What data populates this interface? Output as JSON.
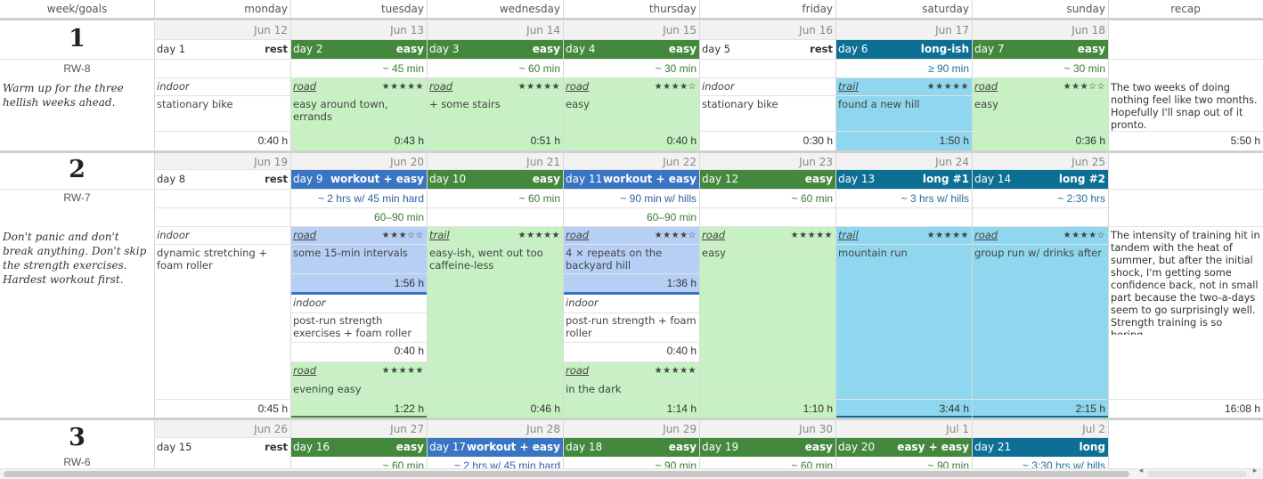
{
  "columns": [
    "week/goals",
    "monday",
    "tuesday",
    "wednesday",
    "thursday",
    "friday",
    "saturday",
    "sunday",
    "recap"
  ],
  "weeks": [
    {
      "number": "1",
      "rw": "RW-8",
      "goal": "Warm up for the three hellish weeks ahead.",
      "recap": "The two weeks of doing nothing feel like two months. Hopefully I'll snap out of it pronto.",
      "recap_total": "5:50 h",
      "days": [
        {
          "date": "Jun 12",
          "label": "day 1",
          "kind": "rest",
          "duration": "",
          "type": "indoor",
          "stars": "",
          "desc": "stationary bike",
          "total": "0:40 h"
        },
        {
          "date": "Jun 13",
          "label": "day 2",
          "kind": "easy",
          "duration": "~ 45 min",
          "type": "road",
          "stars": "★★★★★",
          "desc": "easy around town, errands",
          "total": "0:43 h"
        },
        {
          "date": "Jun 14",
          "label": "day 3",
          "kind": "easy",
          "duration": "~ 60 min",
          "type": "road",
          "stars": "★★★★★",
          "desc": "+ some stairs",
          "total": "0:51 h"
        },
        {
          "date": "Jun 15",
          "label": "day 4",
          "kind": "easy",
          "duration": "~ 30 min",
          "type": "road",
          "stars": "★★★★☆",
          "desc": "easy",
          "total": "0:40 h"
        },
        {
          "date": "Jun 16",
          "label": "day 5",
          "kind": "rest",
          "duration": "",
          "type": "indoor",
          "stars": "",
          "desc": "stationary bike",
          "total": "0:30 h"
        },
        {
          "date": "Jun 17",
          "label": "day 6",
          "kind": "long-ish",
          "duration": "≥ 90 min",
          "type": "trail",
          "stars": "★★★★★",
          "desc": "found a new hill",
          "total": "1:50 h"
        },
        {
          "date": "Jun 18",
          "label": "day 7",
          "kind": "easy",
          "duration": "~ 30 min",
          "type": "road",
          "stars": "★★★☆☆",
          "desc": "easy",
          "total": "0:36 h"
        }
      ]
    },
    {
      "number": "2",
      "rw": "RW-7",
      "goal": "Don't panic and don't break anything. Don't skip the strength exercises. Hardest workout first.",
      "recap": "The intensity of training hit in tandem with the heat of summer, but after the initial shock, I'm getting some confidence back, not in small part because the two-a-days seem to go surprisingly well. Strength training is so boring.",
      "recap_total": "16:08 h",
      "days": [
        {
          "date": "Jun 19",
          "label": "day 8",
          "kind": "rest",
          "duration": "",
          "duration2": "",
          "type": "indoor",
          "stars": "",
          "desc": "dynamic stretching + foam roller",
          "total": "0:45 h"
        },
        {
          "date": "Jun 20",
          "label": "day 9",
          "kind": "workout + easy",
          "duration": "~ 2 hrs w/ 45 min hard",
          "duration2": "60–90 min",
          "type": "road",
          "stars": "★★★☆☆",
          "desc": "some 15-min intervals",
          "sub_total": "1:56 h",
          "s2_type": "indoor",
          "s2_desc": "post-run strength exercises + foam roller",
          "s2_total": "0:40 h",
          "s3_type": "road",
          "s3_stars": "★★★★★",
          "s3_desc": "evening easy",
          "total": "1:22 h"
        },
        {
          "date": "Jun 21",
          "label": "day 10",
          "kind": "easy",
          "duration": "~ 60 min",
          "duration2": "",
          "type": "trail",
          "stars": "★★★★★",
          "desc": "easy-ish, went out too caffeine-less",
          "total": "0:46 h"
        },
        {
          "date": "Jun 22",
          "label": "day 11",
          "kind": "workout + easy",
          "duration": "~ 90 min w/ hills",
          "duration2": "60–90 min",
          "type": "road",
          "stars": "★★★★☆",
          "desc": "4 × repeats on the backyard hill",
          "sub_total": "1:36 h",
          "s2_type": "indoor",
          "s2_desc": "post-run strength + foam roller",
          "s2_total": "0:40 h",
          "s3_type": "road",
          "s3_stars": "★★★★★",
          "s3_desc": "in the dark",
          "total": "1:14 h"
        },
        {
          "date": "Jun 23",
          "label": "day 12",
          "kind": "easy",
          "duration": "~ 60 min",
          "duration2": "",
          "type": "road",
          "stars": "★★★★★",
          "desc": "easy",
          "total": "1:10 h"
        },
        {
          "date": "Jun 24",
          "label": "day 13",
          "kind": "long #1",
          "duration": "~ 3 hrs w/ hills",
          "duration2": "",
          "type": "trail",
          "stars": "★★★★★",
          "desc": "mountain run",
          "total": "3:44 h"
        },
        {
          "date": "Jun 25",
          "label": "day 14",
          "kind": "long #2",
          "duration": "~ 2:30 hrs",
          "duration2": "",
          "type": "road",
          "stars": "★★★★☆",
          "desc": "group run w/ drinks after",
          "total": "2:15 h"
        }
      ]
    },
    {
      "number": "3",
      "rw": "RW-6",
      "days": [
        {
          "date": "Jun 26",
          "label": "day 15",
          "kind": "rest",
          "duration": ""
        },
        {
          "date": "Jun 27",
          "label": "day 16",
          "kind": "easy",
          "duration": "~ 60 min"
        },
        {
          "date": "Jun 28",
          "label": "day 17",
          "kind": "workout + easy",
          "duration": "~ 2 hrs w/ 45 min hard"
        },
        {
          "date": "Jun 29",
          "label": "day 18",
          "kind": "easy",
          "duration": "~ 90 min"
        },
        {
          "date": "Jun 30",
          "label": "day 19",
          "kind": "easy",
          "duration": "~ 60 min"
        },
        {
          "date": "Jul 1",
          "label": "day 20",
          "kind": "easy + easy",
          "duration": "~ 90 min"
        },
        {
          "date": "Jul 2",
          "label": "day 21",
          "kind": "long",
          "duration": "~ 3:30 hrs w/ hills"
        }
      ]
    }
  ],
  "colors": {
    "easy_bar": "#44883e",
    "long_bar": "#0e6f95",
    "easy_bg": "#c7f0c3",
    "trail_bg": "#8fd7ee",
    "workout_bg": "#b5cff5"
  },
  "scrollbar": {
    "left_arrow": "◂",
    "right_arrow": "▸"
  }
}
